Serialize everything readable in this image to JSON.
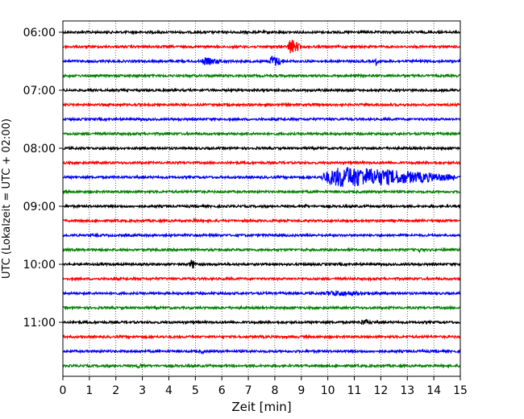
{
  "chart_data": {
    "type": "line",
    "title": "",
    "xlabel": "Zeit  [min]",
    "ylabel": "UTC (Lokalzeit = UTC + 02:00)",
    "xlim": [
      0,
      15
    ],
    "x_ticks": [
      0,
      1,
      2,
      3,
      4,
      5,
      6,
      7,
      8,
      9,
      10,
      11,
      12,
      13,
      14,
      15
    ],
    "x_tick_labels": [
      "0",
      "1",
      "2",
      "3",
      "4",
      "5",
      "6",
      "7",
      "8",
      "9",
      "10",
      "11",
      "12",
      "13",
      "14",
      "15"
    ],
    "y_ticks": [
      "06:00",
      "07:00",
      "08:00",
      "09:00",
      "10:00",
      "11:00"
    ],
    "grid": "vertical-dotted",
    "trace_interval_min": 15,
    "color_cycle": [
      "#000000",
      "#ff0000",
      "#0000ff",
      "#008000"
    ],
    "traces": [
      {
        "start": "06:00",
        "events": []
      },
      {
        "start": "06:15",
        "events": [
          {
            "t": 8.5,
            "dur": 0.5,
            "amp": 11
          }
        ]
      },
      {
        "start": "06:30",
        "events": [
          {
            "t": 5.2,
            "dur": 1.0,
            "amp": 5
          },
          {
            "t": 7.8,
            "dur": 0.6,
            "amp": 8
          },
          {
            "t": 11.8,
            "dur": 0.1,
            "amp": 6
          }
        ]
      },
      {
        "start": "06:45",
        "events": []
      },
      {
        "start": "07:00",
        "events": []
      },
      {
        "start": "07:15",
        "events": []
      },
      {
        "start": "07:30",
        "events": []
      },
      {
        "start": "07:45",
        "events": []
      },
      {
        "start": "08:00",
        "events": []
      },
      {
        "start": "08:15",
        "events": []
      },
      {
        "start": "08:30",
        "events": [
          {
            "t": 9.8,
            "dur": 5.0,
            "amp": 14
          }
        ]
      },
      {
        "start": "08:45",
        "events": [
          {
            "t": 5.0,
            "dur": 0.3,
            "amp": 3
          }
        ]
      },
      {
        "start": "09:00",
        "events": [
          {
            "t": 9.1,
            "dur": 0.2,
            "amp": 3
          }
        ]
      },
      {
        "start": "09:15",
        "events": [
          {
            "t": 4.9,
            "dur": 0.3,
            "amp": 3
          }
        ]
      },
      {
        "start": "09:30",
        "events": [
          {
            "t": 5.5,
            "dur": 0.2,
            "amp": 3
          }
        ]
      },
      {
        "start": "09:45",
        "events": [
          {
            "t": 13.4,
            "dur": 0.3,
            "amp": 3
          }
        ]
      },
      {
        "start": "10:00",
        "events": [
          {
            "t": 4.8,
            "dur": 0.3,
            "amp": 7
          }
        ]
      },
      {
        "start": "10:15",
        "events": []
      },
      {
        "start": "10:30",
        "events": [
          {
            "t": 9.8,
            "dur": 2.6,
            "amp": 4
          }
        ]
      },
      {
        "start": "10:45",
        "events": []
      },
      {
        "start": "11:00",
        "events": [
          {
            "t": 11.2,
            "dur": 0.6,
            "amp": 4
          }
        ]
      },
      {
        "start": "11:15",
        "events": []
      },
      {
        "start": "11:30",
        "events": [
          {
            "t": 5.2,
            "dur": 0.2,
            "amp": 3
          },
          {
            "t": 13.5,
            "dur": 0.2,
            "amp": 3
          }
        ]
      },
      {
        "start": "11:45",
        "events": [
          {
            "t": 2.8,
            "dur": 0.4,
            "amp": 4
          }
        ]
      }
    ]
  }
}
